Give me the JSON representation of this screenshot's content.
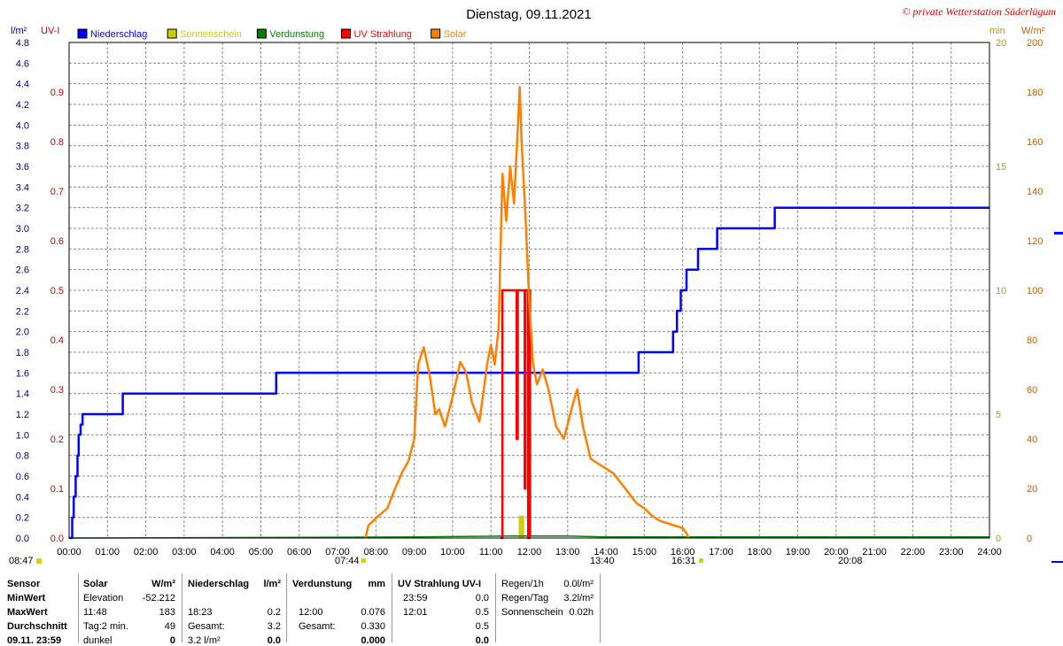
{
  "header": {
    "title": "Dienstag, 09.11.2021",
    "copyright": "© private Wetterstation Süderlügum"
  },
  "axis_units": {
    "left_outer": "l/m²",
    "left_inner": "UV-I",
    "right_inner": "min",
    "right_outer": "W/m²"
  },
  "legend": [
    {
      "label": "Niederschlag",
      "color": "#0000ff"
    },
    {
      "label": "Sonnenschein",
      "color": "#cccc00"
    },
    {
      "label": "Verdunstung",
      "color": "#008000"
    },
    {
      "label": "UV Strahlung",
      "color": "#ff0000"
    },
    {
      "label": "Solar",
      "color": "#ff8000"
    }
  ],
  "time_markers": {
    "left": "08:47",
    "sunrise": "07:44",
    "solar_noon": "13:40",
    "sunset": "16:31",
    "moon": "20:08"
  },
  "chart_data": {
    "type": "line",
    "title": "Dienstag, 09.11.2021",
    "x_ticks": [
      "00:00",
      "01:00",
      "02:00",
      "03:00",
      "04:00",
      "05:00",
      "06:00",
      "07:00",
      "08:00",
      "09:00",
      "10:00",
      "11:00",
      "12:00",
      "13:00",
      "14:00",
      "15:00",
      "16:00",
      "17:00",
      "18:00",
      "19:00",
      "20:00",
      "21:00",
      "22:00",
      "23:00",
      "24:00"
    ],
    "xlim_hours": [
      0,
      24
    ],
    "grid": true,
    "legend_position": "top-left",
    "axes": {
      "niederschlag": {
        "unit": "l/m²",
        "ylim": [
          0,
          4.8
        ],
        "ticks": [
          "0.0",
          "0.2",
          "0.4",
          "0.6",
          "0.8",
          "1.0",
          "1.2",
          "1.4",
          "1.6",
          "1.8",
          "2.0",
          "2.2",
          "2.4",
          "2.6",
          "2.8",
          "3.0",
          "3.2",
          "3.4",
          "3.6",
          "3.8",
          "4.0",
          "4.2",
          "4.4",
          "4.6",
          "4.8"
        ]
      },
      "uv": {
        "unit": "UV-I",
        "ylim": [
          0,
          1.0
        ],
        "ticks": [
          "0.0",
          "0.1",
          "0.2",
          "0.3",
          "0.4",
          "0.5",
          "0.6",
          "0.7",
          "0.8",
          "0.9"
        ]
      },
      "sonnenschein": {
        "unit": "min",
        "ylim": [
          0,
          20
        ],
        "ticks": [
          "0",
          "5",
          "10",
          "15",
          "20"
        ]
      },
      "solar": {
        "unit": "W/m²",
        "ylim": [
          0,
          200
        ],
        "ticks": [
          "0",
          "20",
          "40",
          "60",
          "80",
          "100",
          "120",
          "140",
          "160",
          "180",
          "200"
        ]
      }
    },
    "series": [
      {
        "name": "Niederschlag",
        "axis": "niederschlag",
        "color": "#0000ff",
        "step": true,
        "points": [
          [
            0.0,
            0.0
          ],
          [
            0.08,
            0.2
          ],
          [
            0.12,
            0.4
          ],
          [
            0.17,
            0.6
          ],
          [
            0.22,
            0.8
          ],
          [
            0.25,
            1.0
          ],
          [
            0.3,
            1.1
          ],
          [
            0.35,
            1.2
          ],
          [
            1.35,
            1.2
          ],
          [
            1.4,
            1.4
          ],
          [
            5.35,
            1.4
          ],
          [
            5.4,
            1.6
          ],
          [
            14.8,
            1.6
          ],
          [
            14.85,
            1.8
          ],
          [
            15.7,
            1.8
          ],
          [
            15.75,
            2.0
          ],
          [
            15.85,
            2.2
          ],
          [
            15.95,
            2.4
          ],
          [
            16.1,
            2.6
          ],
          [
            16.4,
            2.8
          ],
          [
            16.9,
            3.0
          ],
          [
            18.35,
            3.0
          ],
          [
            18.4,
            3.2
          ],
          [
            24.0,
            3.2
          ]
        ]
      },
      {
        "name": "Sonnenschein",
        "axis": "sonnenschein",
        "color": "#cccc00",
        "bars": true,
        "points": [
          [
            11.75,
            0.9
          ],
          [
            11.82,
            0.9
          ]
        ]
      },
      {
        "name": "Verdunstung",
        "axis": "niederschlag",
        "color": "#008000",
        "points": [
          [
            0,
            0.0
          ],
          [
            9.0,
            0.01
          ],
          [
            11.4,
            0.02
          ],
          [
            12.0,
            0.02
          ],
          [
            13.0,
            0.02
          ],
          [
            14.0,
            0.01
          ],
          [
            24.0,
            0.01
          ]
        ]
      },
      {
        "name": "UV Strahlung",
        "axis": "uv",
        "color": "#ff0000",
        "step": true,
        "points": [
          [
            11.25,
            0.0
          ],
          [
            11.3,
            0.5
          ],
          [
            11.65,
            0.5
          ],
          [
            11.67,
            0.2
          ],
          [
            11.7,
            0.5
          ],
          [
            11.85,
            0.5
          ],
          [
            11.88,
            0.1
          ],
          [
            11.9,
            0.5
          ],
          [
            11.95,
            0.5
          ],
          [
            11.97,
            0.0
          ],
          [
            12.0,
            0.5
          ],
          [
            12.02,
            0.0
          ]
        ]
      },
      {
        "name": "Solar",
        "axis": "solar",
        "color": "#ff8000",
        "points": [
          [
            7.73,
            0
          ],
          [
            7.8,
            5
          ],
          [
            8.0,
            8
          ],
          [
            8.3,
            12
          ],
          [
            8.5,
            20
          ],
          [
            8.7,
            27
          ],
          [
            8.85,
            31
          ],
          [
            9.0,
            40
          ],
          [
            9.1,
            70
          ],
          [
            9.25,
            77
          ],
          [
            9.4,
            66
          ],
          [
            9.55,
            50
          ],
          [
            9.65,
            52
          ],
          [
            9.8,
            45
          ],
          [
            10.0,
            57
          ],
          [
            10.2,
            71
          ],
          [
            10.35,
            67
          ],
          [
            10.5,
            55
          ],
          [
            10.7,
            47
          ],
          [
            10.9,
            70
          ],
          [
            11.0,
            78
          ],
          [
            11.1,
            70
          ],
          [
            11.2,
            85
          ],
          [
            11.3,
            147
          ],
          [
            11.4,
            128
          ],
          [
            11.5,
            150
          ],
          [
            11.6,
            135
          ],
          [
            11.7,
            165
          ],
          [
            11.75,
            182
          ],
          [
            11.8,
            160
          ],
          [
            11.9,
            130
          ],
          [
            12.0,
            95
          ],
          [
            12.1,
            70
          ],
          [
            12.2,
            62
          ],
          [
            12.35,
            68
          ],
          [
            12.5,
            60
          ],
          [
            12.7,
            45
          ],
          [
            12.9,
            40
          ],
          [
            13.1,
            52
          ],
          [
            13.25,
            60
          ],
          [
            13.4,
            45
          ],
          [
            13.6,
            32
          ],
          [
            13.8,
            30
          ],
          [
            14.0,
            28
          ],
          [
            14.2,
            26
          ],
          [
            14.4,
            22
          ],
          [
            14.6,
            18
          ],
          [
            14.8,
            14
          ],
          [
            15.0,
            12
          ],
          [
            15.2,
            9
          ],
          [
            15.4,
            7
          ],
          [
            15.6,
            6
          ],
          [
            15.8,
            5
          ],
          [
            16.0,
            4
          ],
          [
            16.1,
            2
          ],
          [
            16.15,
            0
          ]
        ]
      }
    ]
  },
  "stats": {
    "headers": {
      "sensor": "Sensor",
      "solar": "Solar",
      "solar_unit": "W/m²",
      "nieder": "Niederschlag",
      "nieder_unit": "l/m²",
      "verd": "Verdunstung",
      "verd_unit": "mm",
      "uv": "UV Strahlung UV-I"
    },
    "rows": [
      {
        "label": "MinWert",
        "solar_time": "Elevation",
        "solar_val": "-52.212",
        "nieder_time": "",
        "nieder_val": "",
        "verd_time": "",
        "verd_val": "",
        "uv_time": "23:59",
        "uv_val": "0.0"
      },
      {
        "label": "MaxWert",
        "solar_time": "11:48",
        "solar_val": "183",
        "nieder_time": "18:23",
        "nieder_val": "0.2",
        "verd_time": "12:00",
        "verd_val": "0.076",
        "uv_time": "12:01",
        "uv_val": "0.5"
      },
      {
        "label": "Durchschnitt",
        "solar_time": "Tag:2 min.",
        "solar_val": "49",
        "nieder_time": "Gesamt:",
        "nieder_val": "3.2",
        "verd_time": "Gesamt:",
        "verd_val": "0.330",
        "uv_time": "",
        "uv_val": "0.5"
      },
      {
        "label": "09.11. 23:59",
        "solar_time": "dunkel",
        "solar_val": "0",
        "nieder_time": "3.2 l/m²",
        "nieder_val": "0.0",
        "verd_time": "",
        "verd_val": "0.000",
        "uv_time": "",
        "uv_val": "0.0"
      }
    ],
    "extra": [
      {
        "label": "Regen/1h",
        "value": "0.0l/m²"
      },
      {
        "label": "Regen/Tag",
        "value": "3.2l/m²"
      },
      {
        "label": "Sonnenschein",
        "value": "0.02h"
      }
    ]
  }
}
